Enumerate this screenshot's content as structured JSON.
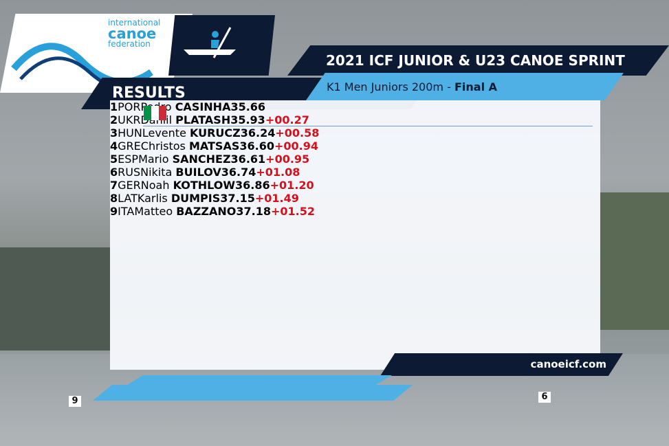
{
  "logo": {
    "line1": "international",
    "line2": "canoe",
    "line3": "federation"
  },
  "header": {
    "section": "RESULTS",
    "title": "2021 ICF JUNIOR & U23 CANOE SPRINT",
    "event": "K1 Men Juniors 200m",
    "separator": "-",
    "phase": "Final A"
  },
  "results": {
    "rows": [
      {
        "rank": 1,
        "country": "POR",
        "first": "Pedro",
        "last": "CASINHA",
        "time": "35.66"
      },
      {
        "rank": 2,
        "country": "UKR",
        "first": "Daniil",
        "last": "PLATASH",
        "time": "35.93",
        "gap": "+00.27"
      },
      {
        "rank": 3,
        "country": "HUN",
        "first": "Levente",
        "last": "KURUCZ",
        "time": "36.24",
        "gap": "+00.58"
      },
      {
        "rank": 4,
        "country": "GRE",
        "first": "Christos",
        "last": "MATSAS",
        "time": "36.60",
        "gap": "+00.94"
      },
      {
        "rank": 5,
        "country": "ESP",
        "first": "Mario",
        "last": "SANCHEZ",
        "time": "36.61",
        "gap": "+00.95"
      },
      {
        "rank": 6,
        "country": "RUS",
        "first": "Nikita",
        "last": "BUILOV",
        "time": "36.74",
        "gap": "+01.08"
      },
      {
        "rank": 7,
        "country": "GER",
        "first": "Noah",
        "last": "KOTHLOW",
        "time": "36.86",
        "gap": "+01.20"
      },
      {
        "rank": 8,
        "country": "LAT",
        "first": "Karlis",
        "last": "DUMPIS",
        "time": "37.15",
        "gap": "+01.49"
      },
      {
        "rank": 9,
        "country": "ITA",
        "first": "Matteo",
        "last": "BAZZANO",
        "time": "37.18",
        "gap": "+01.52"
      }
    ]
  },
  "footer": {
    "website": "canoeicf.com"
  },
  "scene": {
    "markers": [
      "9",
      "6"
    ]
  }
}
